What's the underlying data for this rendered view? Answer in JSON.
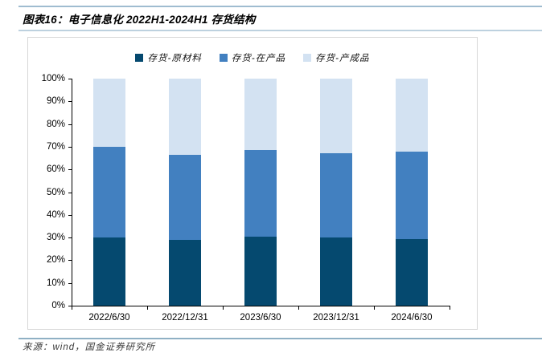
{
  "header": {
    "title": "图表16：电子信息化 2022H1-2024H1 存货结构"
  },
  "footer": {
    "source": "来源：wind，国金证券研究所"
  },
  "colors": {
    "raw_material": "#05496f",
    "work_in_progress": "#4280c0",
    "finished_goods": "#d3e2f2",
    "rule_top": "#9fbcd0",
    "rule_under_title": "#bdd1df",
    "rule_bottom": "#8fb0c4",
    "panel_border": "#d7d7d7",
    "axis": "#000000"
  },
  "chart_data": {
    "type": "bar",
    "stacked": true,
    "title": "电子信息化 2022H1-2024H1 存货结构",
    "categories": [
      "2022/6/30",
      "2022/12/31",
      "2023/6/30",
      "2023/12/31",
      "2024/6/30"
    ],
    "series": [
      {
        "name": "存货-原材料",
        "color": "#05496f",
        "values": [
          30.0,
          29.0,
          30.5,
          30.0,
          29.5
        ]
      },
      {
        "name": "存货-在产品",
        "color": "#4280c0",
        "values": [
          40.0,
          37.5,
          38.0,
          37.0,
          38.5
        ]
      },
      {
        "name": "存货-产成品",
        "color": "#d3e2f2",
        "values": [
          30.0,
          33.5,
          31.5,
          33.0,
          32.0
        ]
      }
    ],
    "ylim": [
      0,
      100
    ],
    "ytick_step": 10,
    "ytick_labels": [
      "0%",
      "10%",
      "20%",
      "30%",
      "40%",
      "50%",
      "60%",
      "70%",
      "80%",
      "90%",
      "100%"
    ],
    "xlabel": "",
    "ylabel": "",
    "legend_position": "top-center",
    "grid": false
  }
}
